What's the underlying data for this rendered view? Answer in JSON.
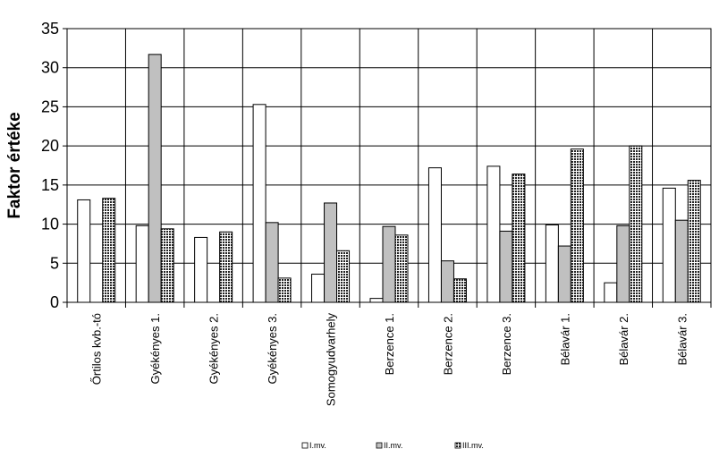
{
  "chart_data": {
    "type": "bar",
    "ylabel": "Faktor értéke",
    "xlabel": "",
    "ylim": [
      0,
      35
    ],
    "yticks": [
      0,
      5,
      10,
      15,
      20,
      25,
      30,
      35
    ],
    "grid": true,
    "legend_position": "bottom",
    "categories": [
      "Őrtilos kvb.-tó",
      "Gyékényes 1.",
      "Gyékényes 2.",
      "Gyékényes 3.",
      "Somogyudvarhely",
      "Berzence 1.",
      "Berzence 2.",
      "Berzence 3.",
      "Bélavár 1.",
      "Bélavár 2.",
      "Bélavár 3."
    ],
    "series": [
      {
        "name": "I.mv.",
        "color": "#ffffff",
        "pattern": "solid",
        "values": [
          13.1,
          9.8,
          8.3,
          25.3,
          3.6,
          0.5,
          17.2,
          17.4,
          9.9,
          2.5,
          14.6
        ]
      },
      {
        "name": "II.mv.",
        "color": "#c0c0c0",
        "pattern": "solid",
        "values": [
          0,
          31.7,
          0,
          10.2,
          12.7,
          9.7,
          5.3,
          9.1,
          7.2,
          9.8,
          10.5
        ]
      },
      {
        "name": "III.mv.",
        "color": "#333333",
        "pattern": "checker",
        "values": [
          13.3,
          9.4,
          9.0,
          3.1,
          6.6,
          8.6,
          3.0,
          16.4,
          19.6,
          20.0,
          15.6
        ]
      }
    ]
  }
}
